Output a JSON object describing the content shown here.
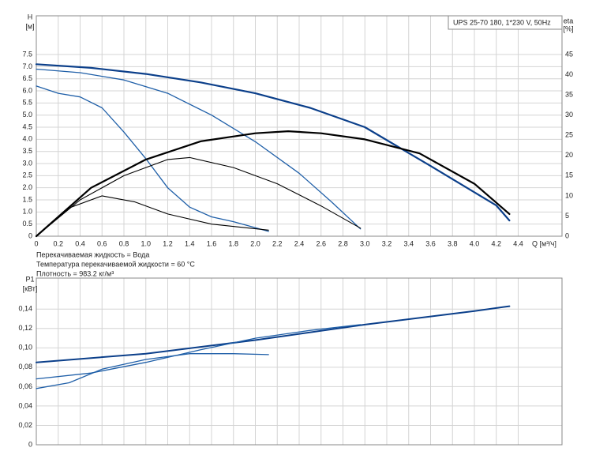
{
  "chart_data": [
    {
      "type": "line",
      "model": "UPS 25-70 180, 1*230 V, 50Hz",
      "y_label": "H",
      "y_unit": "[м]",
      "y2_label": "eta",
      "y2_unit": "[%]",
      "x_label": "Q [м³/ч]",
      "notes": [
        "Перекачиваемая жидкость = Вода",
        "Температура перекачиваемой жидкости = 60 °C",
        "Плотность = 983.2 кг/м³"
      ],
      "xlim": [
        0,
        4.8
      ],
      "xticks": [
        0,
        0.2,
        0.4,
        0.6,
        0.8,
        {
          "value": 1,
          "label": "1.0"
        },
        1.2,
        1.4,
        1.6,
        1.8,
        {
          "value": 2,
          "label": "2.0"
        },
        2.2,
        2.4,
        2.6,
        2.8,
        {
          "value": 3,
          "label": "3.0"
        },
        3.2,
        3.4,
        3.6,
        3.8,
        {
          "value": 4,
          "label": "4.0"
        },
        4.2,
        4.4
      ],
      "ylim": [
        0,
        9.1
      ],
      "yticks": [
        0,
        0.5,
        {
          "value": 1,
          "label": "1.0"
        },
        1.5,
        {
          "value": 2,
          "label": "2.0"
        },
        2.5,
        {
          "value": 3,
          "label": "3.0"
        },
        3.5,
        {
          "value": 4,
          "label": "4.0"
        },
        4.5,
        {
          "value": 5,
          "label": "5.0"
        },
        5.5,
        {
          "value": 6,
          "label": "6.0"
        },
        6.5,
        {
          "value": 7,
          "label": "7.0"
        },
        7.5
      ],
      "y2lim": [
        0,
        54.6
      ],
      "y2ticks": [
        0,
        5,
        10,
        15,
        20,
        25,
        30,
        35,
        40,
        45
      ],
      "grid": true,
      "series": [
        {
          "color": "#0b3f8a",
          "width": 2.2,
          "x": [
            0,
            0.5,
            1,
            1.5,
            2,
            2.5,
            3,
            3.6,
            4.2,
            4.32
          ],
          "values": [
            7.1,
            6.95,
            6.7,
            6.35,
            5.9,
            5.3,
            4.5,
            2.9,
            1.27,
            0.65
          ]
        },
        {
          "color": "#1f5fa8",
          "width": 1.3,
          "x": [
            0,
            0.4,
            0.8,
            1.2,
            1.6,
            2,
            2.4,
            2.7,
            2.96
          ],
          "values": [
            6.9,
            6.75,
            6.45,
            5.9,
            5,
            3.9,
            2.6,
            1.4,
            0.3
          ]
        },
        {
          "color": "#1f5fa8",
          "width": 1.3,
          "x": [
            0,
            0.2,
            0.4,
            0.6,
            0.8,
            1,
            1.2,
            1.4,
            1.6,
            1.8,
            2,
            2.12
          ],
          "values": [
            6.2,
            5.9,
            5.75,
            5.3,
            4.3,
            3.2,
            2,
            1.2,
            0.8,
            0.6,
            0.35,
            0.2
          ]
        },
        {
          "color": "#000000",
          "width": 2.2,
          "axis": "y2",
          "x": [
            0,
            0.5,
            1,
            1.5,
            2,
            2.3,
            2.6,
            3,
            3.5,
            4,
            4.32
          ],
          "values": [
            0,
            12,
            19,
            23.5,
            25.5,
            26,
            25.5,
            24,
            20.5,
            13,
            5.5
          ]
        },
        {
          "color": "#000000",
          "width": 1.1,
          "axis": "y2",
          "x": [
            0,
            0.4,
            0.8,
            1.2,
            1.4,
            1.8,
            2.2,
            2.6,
            2.96
          ],
          "values": [
            0,
            9,
            15,
            19,
            19.5,
            17,
            13,
            7.5,
            2
          ]
        },
        {
          "color": "#000000",
          "width": 1.1,
          "axis": "y2",
          "x": [
            0,
            0.3,
            0.6,
            0.9,
            1.2,
            1.6,
            2.12
          ],
          "values": [
            0,
            7,
            10,
            8.5,
            5.5,
            3,
            1.5
          ]
        }
      ]
    },
    {
      "type": "line",
      "y_label": "P1",
      "y_unit": "[кВт]",
      "xlim": [
        0,
        4.8
      ],
      "ylim": [
        0,
        0.172
      ],
      "yticks": [
        0,
        {
          "value": 0.02,
          "label": "0,02"
        },
        {
          "value": 0.04,
          "label": "0,04"
        },
        {
          "value": 0.06,
          "label": "0,06"
        },
        {
          "value": 0.08,
          "label": "0,08"
        },
        {
          "value": 0.1,
          "label": "0,10"
        },
        {
          "value": 0.12,
          "label": "0,12"
        },
        {
          "value": 0.14,
          "label": "0,14"
        }
      ],
      "grid": true,
      "series": [
        {
          "color": "#0b3f8a",
          "width": 2,
          "x": [
            0,
            1,
            2,
            3,
            4,
            4.32
          ],
          "values": [
            0.085,
            0.094,
            0.108,
            0.124,
            0.138,
            0.143
          ]
        },
        {
          "color": "#1f5fa8",
          "width": 1.3,
          "x": [
            0,
            0.5,
            1,
            1.5,
            2,
            2.5,
            2.96
          ],
          "values": [
            0.068,
            0.074,
            0.085,
            0.098,
            0.11,
            0.118,
            0.124
          ]
        },
        {
          "color": "#1f5fa8",
          "width": 1.3,
          "x": [
            0,
            0.3,
            0.6,
            1,
            1.4,
            1.8,
            2.12
          ],
          "values": [
            0.058,
            0.064,
            0.078,
            0.088,
            0.094,
            0.094,
            0.093
          ]
        }
      ]
    }
  ]
}
